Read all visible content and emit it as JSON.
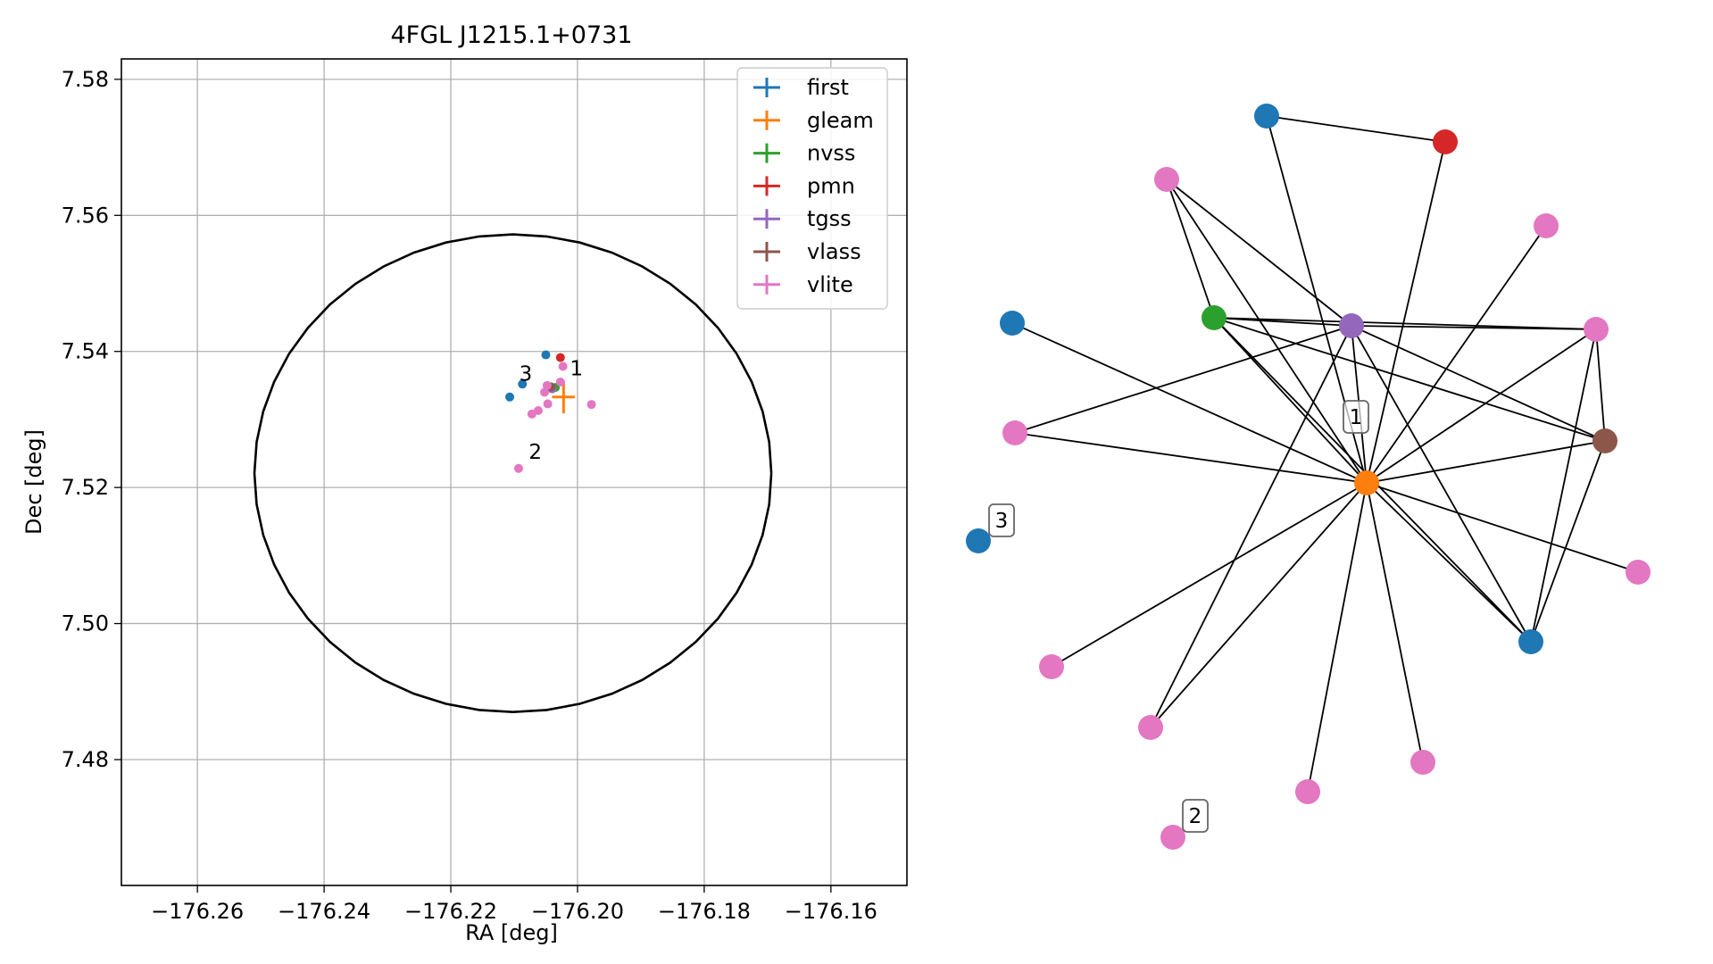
{
  "colors": {
    "first": "#1f77b4",
    "gleam": "#ff7f0e",
    "nvss": "#2ca02c",
    "pmn": "#d62728",
    "tgss": "#9467bd",
    "vlass": "#8c564b",
    "vlite": "#e377c2"
  },
  "chart_data": [
    {
      "type": "scatter",
      "title": "4FGL J1215.1+0731",
      "xlabel": "RA [deg]",
      "ylabel": "Dec [deg]",
      "xlim": [
        -176.272,
        -176.148
      ],
      "ylim": [
        7.4615,
        7.583
      ],
      "x_ticks": [
        -176.26,
        -176.24,
        -176.22,
        -176.2,
        -176.18,
        -176.16
      ],
      "x_tick_labels": [
        "−176.26",
        "−176.24",
        "−176.22",
        "−176.20",
        "−176.18",
        "−176.16"
      ],
      "y_ticks": [
        7.48,
        7.5,
        7.52,
        7.54,
        7.56,
        7.58
      ],
      "y_tick_labels": [
        "7.48",
        "7.50",
        "7.52",
        "7.54",
        "7.56",
        "7.58"
      ],
      "grid": true,
      "legend_position": "top-right",
      "legend": [
        "first",
        "gleam",
        "nvss",
        "pmn",
        "tgss",
        "vlass",
        "vlite"
      ],
      "ellipse": {
        "center": [
          -176.2102,
          7.5221
        ],
        "semi_axis_ra": 0.0408,
        "semi_axis_dec": 0.0351
      },
      "series": [
        {
          "name": "first",
          "points": [
            [
              -176.205,
              7.5395
            ],
            [
              -176.2087,
              7.5352
            ],
            [
              -176.2107,
              7.5333
            ]
          ]
        },
        {
          "name": "gleam",
          "points": [
            [
              -176.2022,
              7.5333
            ]
          ],
          "xerr": 0.0018,
          "yerr": 0.0024
        },
        {
          "name": "nvss",
          "points": [
            [
              -176.2035,
              7.5347
            ]
          ]
        },
        {
          "name": "pmn",
          "points": [
            [
              -176.2027,
              7.5391
            ]
          ]
        },
        {
          "name": "tgss",
          "points": [
            [
              -176.204,
              7.5345
            ]
          ]
        },
        {
          "name": "vlass",
          "points": [
            [
              -176.2042,
              7.5348
            ]
          ]
        },
        {
          "name": "vlite",
          "points": [
            [
              -176.2023,
              7.5378
            ],
            [
              -176.2027,
              7.5355
            ],
            [
              -176.2048,
              7.535
            ],
            [
              -176.2052,
              7.534
            ],
            [
              -176.2047,
              7.5323
            ],
            [
              -176.2062,
              7.5313
            ],
            [
              -176.2072,
              7.5308
            ],
            [
              -176.1978,
              7.5322
            ],
            [
              -176.2093,
              7.5228
            ]
          ]
        }
      ],
      "annotations": [
        {
          "text": "1",
          "x": -176.2012,
          "y": 7.5365
        },
        {
          "text": "2",
          "x": -176.2077,
          "y": 7.5242
        },
        {
          "text": "3",
          "x": -176.2092,
          "y": 7.5357
        }
      ]
    },
    {
      "type": "network",
      "nodes": [
        {
          "id": "first_top",
          "color": "first"
        },
        {
          "id": "pmn",
          "color": "pmn"
        },
        {
          "id": "vlite_1",
          "color": "vlite"
        },
        {
          "id": "vlite_2",
          "color": "vlite"
        },
        {
          "id": "first_left",
          "color": "first"
        },
        {
          "id": "nvss",
          "color": "nvss"
        },
        {
          "id": "tgss",
          "color": "tgss"
        },
        {
          "id": "vlite_3",
          "color": "vlite"
        },
        {
          "id": "vlite_4",
          "color": "vlite"
        },
        {
          "id": "vlass",
          "color": "vlass"
        },
        {
          "id": "gleam",
          "color": "gleam"
        },
        {
          "id": "first_3",
          "color": "first",
          "label": "3"
        },
        {
          "id": "vlite_5",
          "color": "vlite"
        },
        {
          "id": "first_bottom",
          "color": "first"
        },
        {
          "id": "vlite_6",
          "color": "vlite"
        },
        {
          "id": "vlite_7",
          "color": "vlite"
        },
        {
          "id": "vlite_8",
          "color": "vlite"
        },
        {
          "id": "vlite_9",
          "color": "vlite"
        },
        {
          "id": "vlite_2lab",
          "color": "vlite",
          "label": "2"
        }
      ],
      "edges": [
        [
          "first_top",
          "pmn"
        ],
        [
          "first_top",
          "gleam"
        ],
        [
          "pmn",
          "gleam"
        ],
        [
          "vlite_1",
          "nvss"
        ],
        [
          "vlite_1",
          "tgss"
        ],
        [
          "vlite_1",
          "gleam"
        ],
        [
          "vlite_2",
          "gleam"
        ],
        [
          "first_left",
          "gleam"
        ],
        [
          "nvss",
          "tgss"
        ],
        [
          "nvss",
          "vlite_3"
        ],
        [
          "nvss",
          "gleam"
        ],
        [
          "nvss",
          "vlass"
        ],
        [
          "nvss",
          "first_bottom"
        ],
        [
          "tgss",
          "vlite_3"
        ],
        [
          "tgss",
          "vlite_4"
        ],
        [
          "tgss",
          "gleam"
        ],
        [
          "tgss",
          "vlass"
        ],
        [
          "tgss",
          "first_bottom"
        ],
        [
          "tgss",
          "vlite_7"
        ],
        [
          "vlite_3",
          "vlass"
        ],
        [
          "vlite_3",
          "gleam"
        ],
        [
          "vlite_3",
          "first_bottom"
        ],
        [
          "vlite_4",
          "gleam"
        ],
        [
          "vlass",
          "gleam"
        ],
        [
          "vlass",
          "first_bottom"
        ],
        [
          "gleam",
          "vlite_5"
        ],
        [
          "gleam",
          "first_bottom"
        ],
        [
          "gleam",
          "vlite_6"
        ],
        [
          "gleam",
          "vlite_7"
        ],
        [
          "gleam",
          "vlite_8"
        ],
        [
          "gleam",
          "vlite_9"
        ]
      ],
      "node_labels": [
        {
          "node": "gleam",
          "text": "1"
        },
        {
          "node": "first_3",
          "text": "3"
        },
        {
          "node": "vlite_2lab",
          "text": "2"
        }
      ]
    }
  ]
}
